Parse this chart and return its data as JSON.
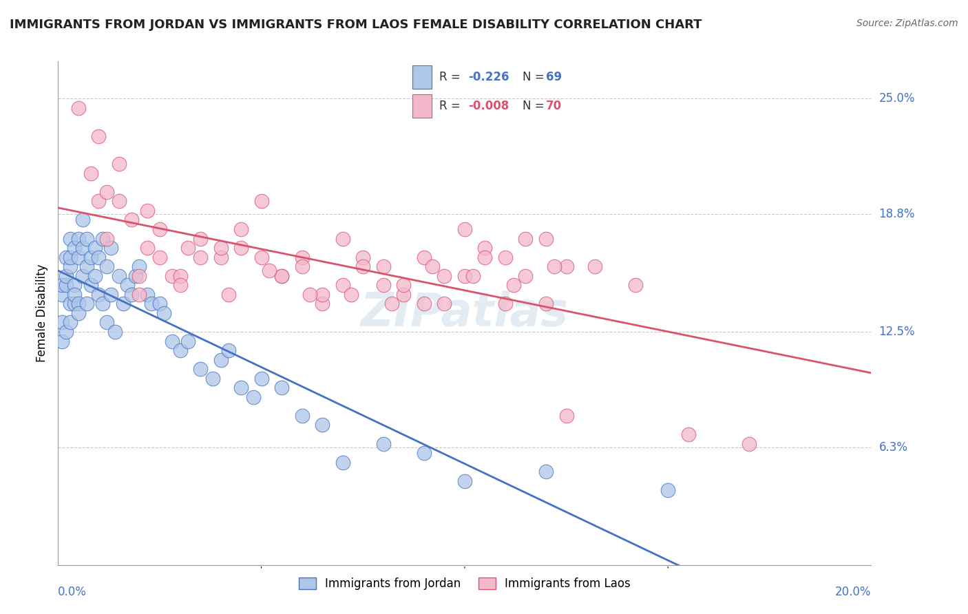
{
  "title": "IMMIGRANTS FROM JORDAN VS IMMIGRANTS FROM LAOS FEMALE DISABILITY CORRELATION CHART",
  "source": "Source: ZipAtlas.com",
  "ylabel": "Female Disability",
  "xlim": [
    0.0,
    0.2
  ],
  "ylim": [
    0.0,
    0.27
  ],
  "yticks": [
    0.063,
    0.125,
    0.188,
    0.25
  ],
  "ytick_labels": [
    "6.3%",
    "12.5%",
    "18.8%",
    "25.0%"
  ],
  "series1_label": "Immigrants from Jordan",
  "series2_label": "Immigrants from Laos",
  "R1": -0.226,
  "N1": 69,
  "R2": -0.008,
  "N2": 70,
  "color1": "#aec6e8",
  "color2": "#f4b8cb",
  "line1_color": "#4472c4",
  "line2_color": "#d9536f",
  "legend_box_color": "#cccccc",
  "watermark": "ZIPatlas",
  "jordan_x": [
    0.001,
    0.001,
    0.001,
    0.001,
    0.002,
    0.002,
    0.002,
    0.002,
    0.003,
    0.003,
    0.003,
    0.003,
    0.003,
    0.004,
    0.004,
    0.004,
    0.004,
    0.005,
    0.005,
    0.005,
    0.005,
    0.006,
    0.006,
    0.006,
    0.007,
    0.007,
    0.007,
    0.008,
    0.008,
    0.009,
    0.009,
    0.01,
    0.01,
    0.011,
    0.011,
    0.012,
    0.012,
    0.013,
    0.013,
    0.014,
    0.015,
    0.016,
    0.017,
    0.018,
    0.019,
    0.02,
    0.022,
    0.023,
    0.025,
    0.026,
    0.028,
    0.03,
    0.032,
    0.035,
    0.038,
    0.04,
    0.042,
    0.045,
    0.048,
    0.05,
    0.055,
    0.06,
    0.065,
    0.07,
    0.08,
    0.09,
    0.1,
    0.12,
    0.15
  ],
  "jordan_y": [
    0.13,
    0.145,
    0.15,
    0.12,
    0.125,
    0.15,
    0.155,
    0.165,
    0.14,
    0.16,
    0.165,
    0.175,
    0.13,
    0.15,
    0.17,
    0.14,
    0.145,
    0.165,
    0.175,
    0.14,
    0.135,
    0.17,
    0.185,
    0.155,
    0.16,
    0.175,
    0.14,
    0.165,
    0.15,
    0.155,
    0.17,
    0.145,
    0.165,
    0.14,
    0.175,
    0.13,
    0.16,
    0.145,
    0.17,
    0.125,
    0.155,
    0.14,
    0.15,
    0.145,
    0.155,
    0.16,
    0.145,
    0.14,
    0.14,
    0.135,
    0.12,
    0.115,
    0.12,
    0.105,
    0.1,
    0.11,
    0.115,
    0.095,
    0.09,
    0.1,
    0.095,
    0.08,
    0.075,
    0.055,
    0.065,
    0.06,
    0.045,
    0.05,
    0.04
  ],
  "laos_x": [
    0.005,
    0.008,
    0.01,
    0.012,
    0.015,
    0.018,
    0.02,
    0.022,
    0.025,
    0.028,
    0.03,
    0.035,
    0.04,
    0.045,
    0.05,
    0.055,
    0.06,
    0.065,
    0.07,
    0.075,
    0.08,
    0.085,
    0.09,
    0.095,
    0.1,
    0.105,
    0.11,
    0.115,
    0.12,
    0.125,
    0.01,
    0.02,
    0.03,
    0.04,
    0.05,
    0.06,
    0.07,
    0.08,
    0.09,
    0.1,
    0.11,
    0.12,
    0.015,
    0.025,
    0.035,
    0.045,
    0.055,
    0.065,
    0.075,
    0.085,
    0.095,
    0.105,
    0.115,
    0.125,
    0.012,
    0.022,
    0.032,
    0.042,
    0.052,
    0.062,
    0.072,
    0.082,
    0.092,
    0.102,
    0.112,
    0.122,
    0.132,
    0.142,
    0.155,
    0.17
  ],
  "laos_y": [
    0.245,
    0.21,
    0.195,
    0.175,
    0.195,
    0.185,
    0.155,
    0.17,
    0.165,
    0.155,
    0.155,
    0.175,
    0.165,
    0.18,
    0.195,
    0.155,
    0.165,
    0.14,
    0.15,
    0.165,
    0.16,
    0.145,
    0.165,
    0.155,
    0.18,
    0.17,
    0.14,
    0.155,
    0.175,
    0.16,
    0.23,
    0.145,
    0.15,
    0.17,
    0.165,
    0.16,
    0.175,
    0.15,
    0.14,
    0.155,
    0.165,
    0.14,
    0.215,
    0.18,
    0.165,
    0.17,
    0.155,
    0.145,
    0.16,
    0.15,
    0.14,
    0.165,
    0.175,
    0.08,
    0.2,
    0.19,
    0.17,
    0.145,
    0.158,
    0.145,
    0.145,
    0.14,
    0.16,
    0.155,
    0.15,
    0.16,
    0.16,
    0.15,
    0.07,
    0.065
  ]
}
